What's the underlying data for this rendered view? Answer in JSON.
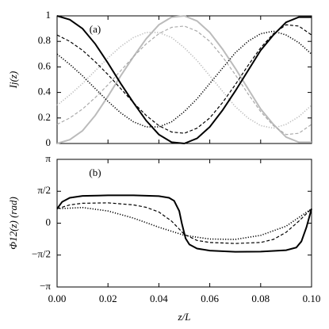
{
  "chart_data": [
    {
      "type": "line",
      "annotation": "(a)",
      "ylabel": "Ij(z)",
      "x": [
        0,
        0.005,
        0.01,
        0.015,
        0.02,
        0.025,
        0.03,
        0.035,
        0.04,
        0.045,
        0.05,
        0.055,
        0.06,
        0.065,
        0.07,
        0.075,
        0.08,
        0.085,
        0.09,
        0.095,
        0.1
      ],
      "xlim": [
        0,
        0.1
      ],
      "xticks": [
        0,
        0.02,
        0.04,
        0.06,
        0.08,
        0.1
      ],
      "ylim": [
        0,
        1
      ],
      "yticks": [
        0,
        0.2,
        0.4,
        0.6,
        0.8,
        1
      ],
      "series": [
        {
          "color": "#bbbbbb",
          "linestyle": "solid",
          "values": [
            0,
            0.03,
            0.1,
            0.22,
            0.37,
            0.53,
            0.68,
            0.82,
            0.93,
            0.99,
            1,
            0.96,
            0.87,
            0.74,
            0.59,
            0.43,
            0.27,
            0.15,
            0.05,
            0.01,
            0.01
          ]
        },
        {
          "color": "#aaaaaa",
          "linestyle": "dashed",
          "values": [
            0.15,
            0.2,
            0.27,
            0.36,
            0.46,
            0.57,
            0.68,
            0.78,
            0.86,
            0.91,
            0.92,
            0.88,
            0.8,
            0.68,
            0.54,
            0.39,
            0.25,
            0.14,
            0.07,
            0.08,
            0.15
          ]
        },
        {
          "color": "#bbbbbb",
          "linestyle": "dotted",
          "values": [
            0.3,
            0.38,
            0.47,
            0.57,
            0.67,
            0.76,
            0.83,
            0.87,
            0.87,
            0.83,
            0.75,
            0.65,
            0.53,
            0.41,
            0.29,
            0.2,
            0.14,
            0.12,
            0.15,
            0.21,
            0.3
          ]
        },
        {
          "color": "#000000",
          "linestyle": "dotted",
          "values": [
            0.7,
            0.62,
            0.53,
            0.43,
            0.33,
            0.24,
            0.17,
            0.13,
            0.13,
            0.17,
            0.25,
            0.35,
            0.47,
            0.59,
            0.71,
            0.8,
            0.86,
            0.88,
            0.85,
            0.79,
            0.7
          ]
        },
        {
          "color": "#000000",
          "linestyle": "dashed",
          "values": [
            0.85,
            0.8,
            0.73,
            0.64,
            0.54,
            0.43,
            0.32,
            0.22,
            0.14,
            0.09,
            0.08,
            0.12,
            0.2,
            0.32,
            0.46,
            0.61,
            0.75,
            0.86,
            0.93,
            0.92,
            0.85
          ]
        },
        {
          "color": "#000000",
          "linestyle": "solid",
          "values": [
            1,
            0.97,
            0.9,
            0.78,
            0.63,
            0.47,
            0.32,
            0.18,
            0.07,
            0.01,
            0,
            0.04,
            0.13,
            0.26,
            0.41,
            0.57,
            0.73,
            0.85,
            0.95,
            0.99,
            0.99
          ]
        }
      ]
    },
    {
      "type": "line",
      "annotation": "(b)",
      "ylabel": "Φ12(z) (rad)",
      "xlabel": "z/L",
      "xlim": [
        0,
        0.1
      ],
      "xticks": [
        {
          "value": 0,
          "label": "0.00"
        },
        {
          "value": 0.02,
          "label": "0.02"
        },
        {
          "value": 0.04,
          "label": "0.04"
        },
        {
          "value": 0.06,
          "label": "0.06"
        },
        {
          "value": 0.08,
          "label": "0.08"
        },
        {
          "value": 0.1,
          "label": "0.10"
        }
      ],
      "ylim": [
        -3.14159,
        3.14159
      ],
      "yticks": [
        {
          "value": -3.14159,
          "label": "−π"
        },
        {
          "value": -1.5708,
          "label": "−π/2"
        },
        0,
        {
          "value": 1.5708,
          "label": "π/2"
        },
        {
          "value": 3.14159,
          "label": "π"
        }
      ],
      "series": [
        {
          "color": "#000000",
          "linestyle": "dotted",
          "x": [
            0,
            0.01,
            0.02,
            0.03,
            0.04,
            0.05,
            0.06,
            0.07,
            0.08,
            0.09,
            0.1
          ],
          "values": [
            0.71,
            0.77,
            0.6,
            0.25,
            -0.2,
            -0.6,
            -0.78,
            -0.8,
            -0.6,
            -0.15,
            0.71
          ]
        },
        {
          "color": "#000000",
          "linestyle": "dashed",
          "x": [
            0,
            0.005,
            0.01,
            0.02,
            0.03,
            0.035,
            0.04,
            0.045,
            0.05,
            0.055,
            0.06,
            0.07,
            0.08,
            0.085,
            0.09,
            0.095,
            0.1
          ],
          "values": [
            0.71,
            0.9,
            0.98,
            1.0,
            0.9,
            0.78,
            0.55,
            0.1,
            -0.55,
            -0.85,
            -0.95,
            -1.0,
            -0.95,
            -0.8,
            -0.45,
            0.1,
            0.71
          ]
        },
        {
          "color": "#000000",
          "linestyle": "solid",
          "x": [
            0,
            0.002,
            0.005,
            0.01,
            0.02,
            0.03,
            0.04,
            0.044,
            0.046,
            0.048,
            0.049,
            0.0505,
            0.052,
            0.055,
            0.06,
            0.07,
            0.08,
            0.09,
            0.094,
            0.096,
            0.098,
            0.1
          ],
          "values": [
            0.71,
            1.05,
            1.25,
            1.34,
            1.37,
            1.37,
            1.33,
            1.25,
            1.1,
            0.6,
            0,
            -0.75,
            -1.05,
            -1.25,
            -1.35,
            -1.41,
            -1.4,
            -1.33,
            -1.2,
            -0.9,
            -0.2,
            0.71
          ]
        }
      ]
    }
  ]
}
